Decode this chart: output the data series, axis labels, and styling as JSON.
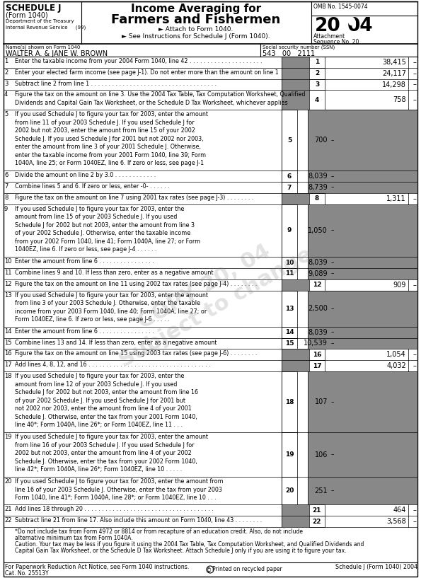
{
  "title_main": "Income Averaging for",
  "title_main2": "Farmers and Fishermen",
  "schedule_label": "SCHEDULE J",
  "form_label": "(Form 1040)",
  "dept_label": "Department of the Treasury",
  "irs_label": "Internal Revenue Service     (99)",
  "attach_line1": "► Attach to Form 1040.",
  "attach_line2": "► See Instructions for Schedule J (Form 1040).",
  "omb_label": "OMB No. 1545-0074",
  "attachment_label": "Attachment",
  "sequence_label": "Sequence No. 20",
  "name_label": "Name(s) shown on Form 1040",
  "name_value": "WALTER A. & JANE W. BROWN",
  "ssn_label": "Social security number (SSN)",
  "ssn_value": "543   00   2111",
  "lines": [
    {
      "num": "1",
      "text": "Enter the taxable income from your 2004 Form 1040, line 42 . . . . . . . . . . . . . . . . . . . . .",
      "value": "38,415",
      "col": "right",
      "nlines": 1
    },
    {
      "num": "2",
      "text": "Enter your elected farm income (see page J-1). Do not enter more than the amount on line 1",
      "value": "24,117",
      "col": "right",
      "nlines": 1
    },
    {
      "num": "3",
      "text": "Subtract line 2 from line 1 . . . . . . . . . . . . . . . . . . . . . . . . . . . . . . . . . . . .",
      "value": "14,298",
      "col": "right",
      "nlines": 1
    },
    {
      "num": "4",
      "text": "Figure the tax on the amount on line 3. Use the 2004 Tax Table, Tax Computation Worksheet, Qualified\nDividends and Capital Gain Tax Worksheet, or the Schedule D Tax Worksheet, whichever applies",
      "value": "758",
      "col": "right",
      "nlines": 2
    },
    {
      "num": "5",
      "text": "If you used Schedule J to figure your tax for 2003, enter the amount\nfrom line 11 of your 2003 Schedule J. If you used Schedule J for\n2002 but not 2003, enter the amount from line 15 of your 2002\nSchedule J. If you used Schedule J for 2001 but not 2002 nor 2003,\nenter the amount from line 3 of your 2001 Schedule J. Otherwise,\nenter the taxable income from your 2001 Form 1040, line 39; Form\n1040A, line 25; or Form 1040EZ, line 6. If zero or less, see page J-1",
      "value": "700",
      "col": "left",
      "nlines": 7
    },
    {
      "num": "6",
      "text": "Divide the amount on line 2 by 3.0 . . . . . . . . . . . .",
      "value": "8,039",
      "col": "left",
      "nlines": 1
    },
    {
      "num": "7",
      "text": "Combine lines 5 and 6. If zero or less, enter -0- . . . . . .",
      "value": "8,739",
      "col": "left",
      "nlines": 1
    },
    {
      "num": "8",
      "text": "Figure the tax on the amount on line 7 using 2001 tax rates (see page J-3) . . . . . . . .",
      "value": "1,311",
      "col": "right",
      "nlines": 1
    },
    {
      "num": "9",
      "text": "If you used Schedule J to figure your tax for 2003, enter the\namount from line 15 of your 2003 Schedule J. If you used\nSchedule J for 2002 but not 2003, enter the amount from line 3\nof your 2002 Schedule J. Otherwise, enter the taxable income\nfrom your 2002 Form 1040, line 41; Form 1040A, line 27; or Form\n1040EZ, line 6. If zero or less, see page J-4 . . . . . .",
      "value": "1,050",
      "col": "left",
      "nlines": 6
    },
    {
      "num": "10",
      "text": "Enter the amount from line 6 . . . . . . . . . . . . . . . .",
      "value": "8,039",
      "col": "left",
      "nlines": 1
    },
    {
      "num": "11",
      "text": "Combine lines 9 and 10. If less than zero, enter as a negative amount",
      "value": "9,089",
      "col": "left",
      "nlines": 1
    },
    {
      "num": "12",
      "text": "Figure the tax on the amount on line 11 using 2002 tax rates (see page J-4) . . . . . . . .",
      "value": "909",
      "col": "right",
      "nlines": 1
    },
    {
      "num": "13",
      "text": "If you used Schedule J to figure your tax for 2003, enter the amount\nfrom line 3 of your 2003 Schedule J. Otherwise, enter the taxable\nincome from your 2003 Form 1040, line 40; Form 1040A, line 27; or\nForm 1040EZ, line 6. If zero or less, see page J-6 . . . . .",
      "value": "2,500",
      "col": "left",
      "nlines": 4
    },
    {
      "num": "14",
      "text": "Enter the amount from line 6 . . . . . . . . . . . . . . . .",
      "value": "8,039",
      "col": "left",
      "nlines": 1
    },
    {
      "num": "15",
      "text": "Combine lines 13 and 14. If less than zero, enter as a negative amount",
      "value": "10,539",
      "col": "left",
      "nlines": 1
    },
    {
      "num": "16",
      "text": "Figure the tax on the amount on line 15 using 2003 tax rates (see page J-6) . . . . . . . .",
      "value": "1,054",
      "col": "right",
      "nlines": 1
    },
    {
      "num": "17",
      "text": "Add lines 4, 8, 12, and 16 . . . . . . . . . . . . . . . . . . . . . . . . . . . . . . . . . . .",
      "value": "4,032",
      "col": "right",
      "nlines": 1
    },
    {
      "num": "18",
      "text": "If you used Schedule J to figure your tax for 2003, enter the\namount from line 12 of your 2003 Schedule J. If you used\nSchedule J for 2002 but not 2003, enter the amount from line 16\nof your 2002 Schedule J. If you used Schedule J for 2001 but\nnot 2002 nor 2003, enter the amount from line 4 of your 2001\nSchedule J. Otherwise, enter the tax from your 2001 Form 1040,\nline 40*; Form 1040A, line 26*; or Form 1040EZ, line 11 . . .",
      "value": "107",
      "col": "left",
      "nlines": 7
    },
    {
      "num": "19",
      "text": "If you used Schedule J to figure your tax for 2003, enter the amount\nfrom line 16 of your 2003 Schedule J. If you used Schedule J for\n2002 but not 2003, enter the amount from line 4 of your 2002\nSchedule J. Otherwise, enter the tax from your 2002 Form 1040,\nline 42*; Form 1040A, line 26*; Form 1040EZ, line 10 . . . . .",
      "value": "106",
      "col": "left",
      "nlines": 5
    },
    {
      "num": "20",
      "text": "If you used Schedule J to figure your tax for 2003, enter the amount from\nline 16 of your 2003 Schedule J. Otherwise, enter the tax from your 2003\nForm 1040, line 41*; Form 1040A, line 28*; or Form 1040EZ, line 10 . . .",
      "value": "251",
      "col": "left",
      "nlines": 3
    },
    {
      "num": "21",
      "text": "Add lines 18 through 20 . . . . . . . . . . . . . . . . . . . . . . . . . . . . . . . . . . . . .",
      "value": "464",
      "col": "right",
      "nlines": 1
    },
    {
      "num": "22",
      "text": "Subtract line 21 from line 17. Also include this amount on Form 1040, line 43 . . . . . . . .",
      "value": "3,568",
      "col": "right",
      "nlines": 1
    }
  ],
  "footnote_star": "*Do not include tax from Form 4972 or 8814 or from recapture of an education credit. Also, do not include",
  "footnote_star2": "alternative minimum tax from Form 1040A.",
  "caution_text": "Caution. Your tax may be less if you figure it using the 2004 Tax Table, Tax Computation Worksheet, and Qualified Dividends and",
  "caution_text2": "Capital Gain Tax Worksheet, or the Schedule D Tax Worksheet. Attach Schedule J only if you are using it to figure your tax.",
  "paperwork_notice": "For Paperwork Reduction Act Notice, see Form 1040 instructions.",
  "cat_no": "Cat. No. 25513Y",
  "footer_right": "Schedule J (Form 1040) 2004",
  "recycle_text": "Printed on recycled paper",
  "gray_shade": "#888888",
  "light_gray": "#aaaaaa"
}
